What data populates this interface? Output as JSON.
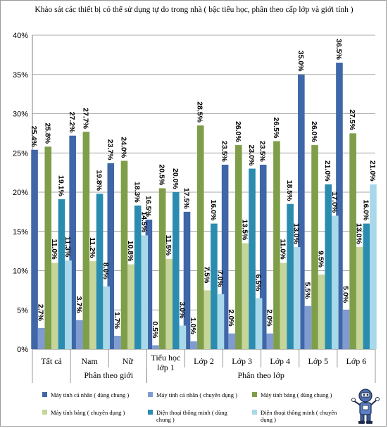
{
  "title": "Khảo sát các thiết bị có thể sử dụng tự do trong nhà ( bậc tiểu học, phân theo cấp lớp và giới tính )",
  "chart_data": {
    "type": "bar",
    "title": "Khảo sát các thiết bị có thể sử dụng tự do trong nhà ( bậc tiểu học, phân theo cấp lớp và giới tính )",
    "categories": [
      "Tất cả",
      "Nam",
      "Nữ",
      "Tiểu học lớp 1",
      "Lớp 2",
      "Lớp 3",
      "Lớp 4",
      "Lớp 5",
      "Lớp 6"
    ],
    "group_labels": [
      {
        "label": "Phân theo giới"
      },
      {
        "label": "Phân theo lớp"
      }
    ],
    "ylim": [
      0,
      40
    ],
    "yticks": [
      "0%",
      "5%",
      "10%",
      "15%",
      "20%",
      "25%",
      "30%",
      "35%",
      "40%"
    ],
    "grid": true,
    "legend_position": "bottom",
    "series": [
      {
        "name": "Máy tính cá nhân ( dùng chung )",
        "color": "#3f67a8",
        "values": [
          25.4,
          27.2,
          23.7,
          16.5,
          17.5,
          23.5,
          23.5,
          35.0,
          36.5
        ],
        "labels": [
          "25.4%",
          "27.2%",
          "23.7%",
          "16.5%",
          "17.5%",
          "23.5%",
          "23.5%",
          "35.0%",
          "36.5%"
        ]
      },
      {
        "name": "Máy tính cá nhân ( chuyên dụng )",
        "color": "#7f9bd2",
        "values": [
          2.7,
          3.7,
          1.7,
          0.5,
          1.0,
          2.0,
          2.0,
          5.5,
          5.0
        ],
        "labels": [
          "2.7%",
          "3.7%",
          "1.7%",
          "0.5%",
          "1.0%",
          "2.0%",
          "2.0%",
          "5.5%",
          "5.0%"
        ]
      },
      {
        "name": "Máy tính bảng ( dùng chung )",
        "color": "#7e9e49",
        "values": [
          25.8,
          27.7,
          24.0,
          20.5,
          28.5,
          26.0,
          26.5,
          26.0,
          27.5
        ],
        "labels": [
          "25.8%",
          "27.7%",
          "24.0%",
          "20.5%",
          "28.5%",
          "26.0%",
          "26.5%",
          "26.0%",
          "27.5%"
        ]
      },
      {
        "name": "Máy tính bảng ( chuyên dụng )",
        "color": "#c6d69a",
        "values": [
          11.0,
          11.2,
          10.8,
          11.5,
          7.5,
          13.5,
          11.0,
          9.5,
          13.0
        ],
        "labels": [
          "11.0%",
          "11.2%",
          "10.8%",
          "11.5%",
          "7.5%",
          "13.5%",
          "11.0%",
          "9.5%",
          "13.0%"
        ]
      },
      {
        "name": "Điện thoại thông minh ( dùng chung )",
        "color": "#2a8caf",
        "values": [
          19.1,
          19.8,
          18.3,
          20.0,
          16.0,
          23.0,
          18.5,
          21.0,
          16.0
        ],
        "labels": [
          "19.1%",
          "19.8%",
          "18.3%",
          "20.0%",
          "16.0%",
          "23.0%",
          "18.5%",
          "21.0%",
          "16.0%"
        ]
      },
      {
        "name": "Điện thoại thông minh ( chuyên dụng )",
        "color": "#a9d8ea",
        "values": [
          11.3,
          8.0,
          14.5,
          3.0,
          7.0,
          6.5,
          13.0,
          17.0,
          21.0
        ],
        "labels": [
          "11.3%",
          "8.0%",
          "14.5%",
          "3.0%",
          "7.0%",
          "6.5%",
          "13.0%",
          "17.0%",
          "21.0%"
        ]
      }
    ]
  }
}
